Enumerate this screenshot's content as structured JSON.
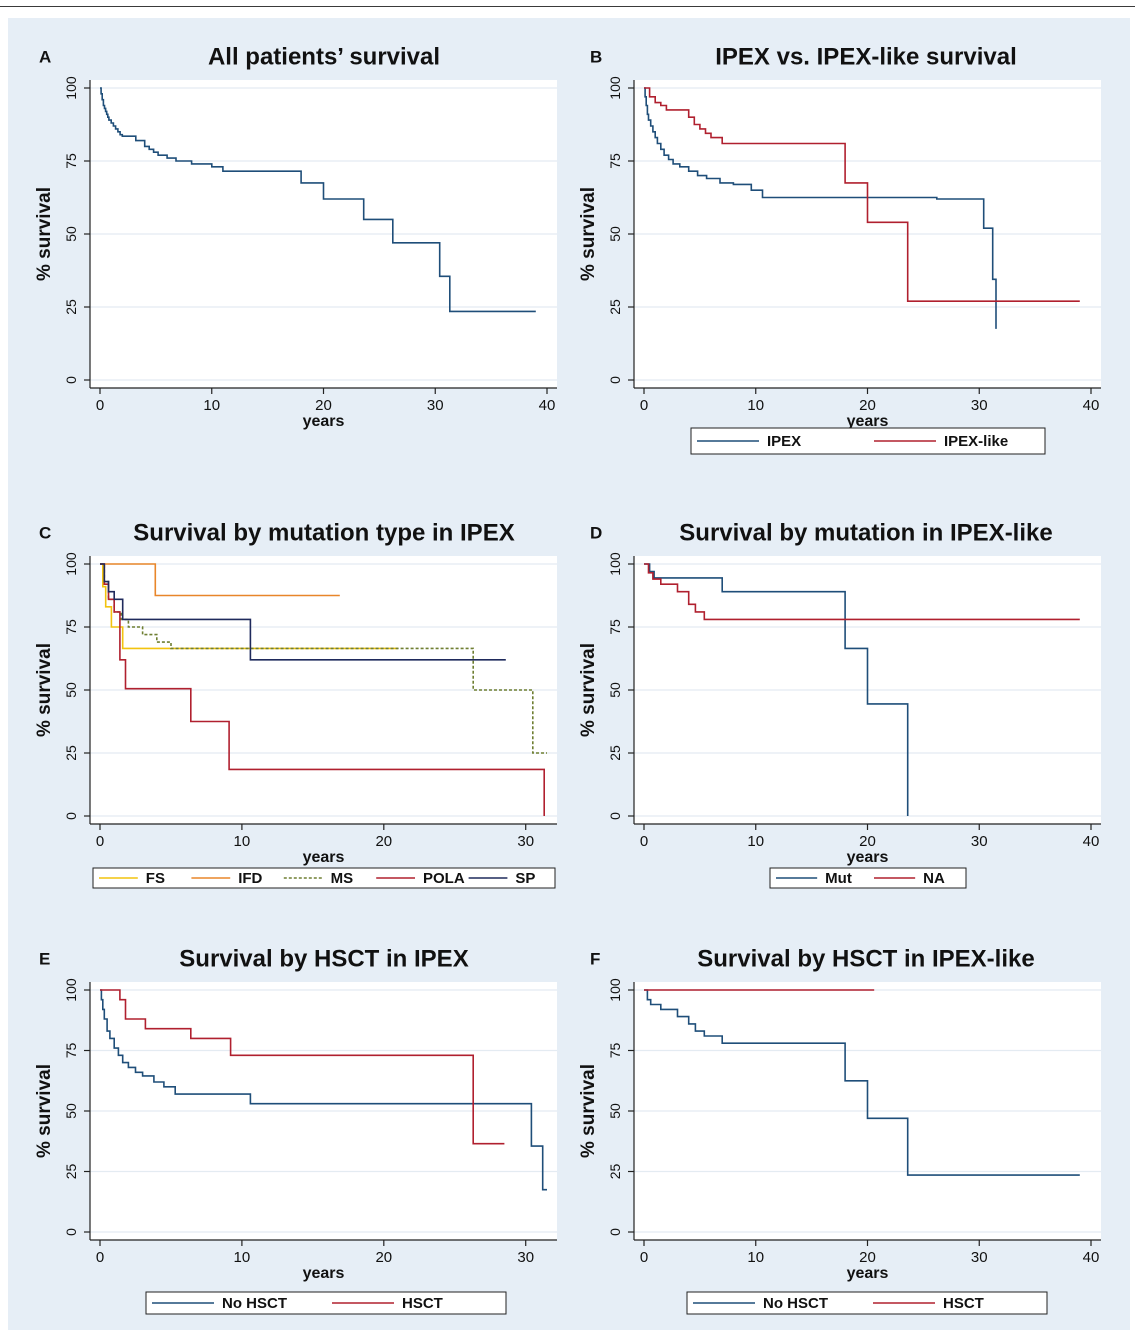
{
  "colors": {
    "background": "#e6eef6",
    "plot_area": "#ffffff",
    "navy": "#1f4e79",
    "dark_red": "#b0202f",
    "yellow": "#f2c30f",
    "orange": "#e8862a",
    "olive": "#6f7f32",
    "dark_navy": "#1f2a5c",
    "axis": "#222222"
  },
  "chart_data": [
    {
      "panel": "A",
      "title": "All patients’ survival",
      "type": "line",
      "xlabel": "years",
      "ylabel": "% survival",
      "xlim": [
        0,
        40
      ],
      "ylim": [
        0,
        100
      ],
      "xticks": [
        0,
        10,
        20,
        30,
        40
      ],
      "yticks": [
        0,
        25,
        50,
        75,
        100
      ],
      "grid": true,
      "legend": null,
      "series": [
        {
          "color": "#1f4e79",
          "x": [
            0,
            0.1,
            0.2,
            0.3,
            0.4,
            0.5,
            0.6,
            0.7,
            0.8,
            1.0,
            1.2,
            1.4,
            1.6,
            1.8,
            2.0,
            3.2,
            4.0,
            4.4,
            4.8,
            5.2,
            6.0,
            6.8,
            8.2,
            10.0,
            11.0,
            18.0,
            20.0,
            23.6,
            26.2,
            30.4,
            31.3,
            39.0
          ],
          "y": [
            100,
            98,
            96,
            94,
            93,
            92,
            91,
            90,
            89,
            88,
            87,
            86,
            85,
            84,
            83.5,
            82,
            80,
            79,
            78,
            77,
            76,
            75,
            74,
            73,
            71.5,
            67.5,
            62,
            55,
            47,
            35.5,
            23.5,
            23.5
          ]
        }
      ]
    },
    {
      "panel": "B",
      "title": "IPEX vs. IPEX-like survival",
      "type": "line",
      "xlabel": "years",
      "ylabel": "% survival",
      "xlim": [
        0,
        40
      ],
      "ylim": [
        0,
        100
      ],
      "xticks": [
        0,
        10,
        20,
        30,
        40
      ],
      "yticks": [
        0,
        25,
        50,
        75,
        100
      ],
      "grid": true,
      "legend": "bottom",
      "series": [
        {
          "name": "IPEX",
          "color": "#1f4e79",
          "x": [
            0,
            0.1,
            0.2,
            0.3,
            0.4,
            0.6,
            0.8,
            1.0,
            1.2,
            1.5,
            1.8,
            2.2,
            2.6,
            3.2,
            4.0,
            4.8,
            5.6,
            6.8,
            8.0,
            9.6,
            10.6,
            26.2,
            30.4,
            31.2,
            31.5
          ],
          "y": [
            100,
            97,
            94,
            91,
            89,
            87,
            85,
            83,
            81,
            79,
            77,
            75.5,
            74,
            73,
            71.5,
            70,
            69,
            67.5,
            67,
            65,
            62.5,
            62,
            52,
            34.5,
            17.5
          ]
        },
        {
          "name": "IPEX-like",
          "color": "#b0202f",
          "x": [
            0,
            0.5,
            1.0,
            1.5,
            2.0,
            4.0,
            4.5,
            5.0,
            5.5,
            6.0,
            7.0,
            18.0,
            20.0,
            23.6,
            39.0
          ],
          "y": [
            100,
            97,
            95,
            94,
            92.5,
            90,
            87.5,
            86,
            84.5,
            83,
            81,
            67.5,
            54,
            27,
            27
          ]
        }
      ]
    },
    {
      "panel": "C",
      "title": "Survival by mutation type in IPEX",
      "type": "line",
      "xlabel": "years",
      "ylabel": "% survival",
      "xlim": [
        0,
        31.5
      ],
      "ylim": [
        0,
        100
      ],
      "xticks": [
        0,
        10,
        20,
        30
      ],
      "yticks": [
        0,
        25,
        50,
        75,
        100
      ],
      "grid": true,
      "legend": "bottom",
      "series": [
        {
          "name": "FS",
          "color": "#f2c30f",
          "x": [
            0,
            0.2,
            0.4,
            0.8,
            1.6,
            21.0
          ],
          "y": [
            100,
            91,
            83,
            75,
            66.5,
            66.5
          ]
        },
        {
          "name": "IFD",
          "color": "#e8862a",
          "x": [
            0,
            0.4,
            3.9,
            16.9
          ],
          "y": [
            100,
            100,
            87.5,
            87.5
          ]
        },
        {
          "name": "MS",
          "color": "#6f7f32",
          "dash": "3,2",
          "x": [
            0,
            0.3,
            0.6,
            1.0,
            1.5,
            2.0,
            3.0,
            4.0,
            5.0,
            26.3,
            30.5,
            31.5
          ],
          "y": [
            100,
            93,
            86,
            81,
            78,
            75,
            72,
            69,
            66.5,
            50,
            25,
            25
          ]
        },
        {
          "name": "POLA",
          "color": "#b0202f",
          "x": [
            0,
            0.3,
            0.6,
            1.0,
            1.4,
            1.8,
            6.4,
            9.1,
            31.3,
            31.3
          ],
          "y": [
            100,
            92,
            86,
            81,
            62,
            50.5,
            37.5,
            18.5,
            18.5,
            0
          ]
        },
        {
          "name": "SP",
          "color": "#1f2a5c",
          "x": [
            0,
            0.3,
            0.6,
            1.0,
            1.6,
            10.6,
            28.6
          ],
          "y": [
            100,
            93,
            89,
            86,
            78,
            62,
            62
          ]
        }
      ]
    },
    {
      "panel": "D",
      "title": "Survival by mutation in IPEX-like",
      "type": "line",
      "xlabel": "years",
      "ylabel": "% survival",
      "xlim": [
        0,
        40
      ],
      "ylim": [
        0,
        100
      ],
      "xticks": [
        0,
        10,
        20,
        30,
        40
      ],
      "yticks": [
        0,
        25,
        50,
        75,
        100
      ],
      "grid": true,
      "legend": "bottom",
      "series": [
        {
          "name": "Mut",
          "color": "#1f4e79",
          "x": [
            0,
            0.5,
            0.9,
            7.0,
            18.0,
            20.0,
            23.6,
            23.6
          ],
          "y": [
            100,
            97,
            94.5,
            89,
            66.5,
            44.5,
            44.5,
            0
          ]
        },
        {
          "name": "NA",
          "color": "#b0202f",
          "x": [
            0,
            0.4,
            0.8,
            1.5,
            3.0,
            4.0,
            4.6,
            5.4,
            39.0
          ],
          "y": [
            100,
            96.5,
            94,
            92,
            89,
            84,
            81,
            78,
            78
          ]
        }
      ]
    },
    {
      "panel": "E",
      "title": "Survival by HSCT in IPEX",
      "type": "line",
      "xlabel": "years",
      "ylabel": "% survival",
      "xlim": [
        0,
        31.5
      ],
      "ylim": [
        0,
        100
      ],
      "xticks": [
        0,
        10,
        20,
        30
      ],
      "yticks": [
        0,
        25,
        50,
        75,
        100
      ],
      "grid": true,
      "legend": "bottom",
      "series": [
        {
          "name": "No HSCT",
          "color": "#1f4e79",
          "x": [
            0,
            0.1,
            0.2,
            0.3,
            0.5,
            0.7,
            1.0,
            1.3,
            1.6,
            2.0,
            2.5,
            3.0,
            3.8,
            4.5,
            5.3,
            10.6,
            30.4,
            31.2,
            31.5
          ],
          "y": [
            100,
            96,
            92,
            88,
            83,
            80,
            76,
            73,
            70,
            68,
            66,
            64.5,
            62,
            60,
            57,
            53,
            35.5,
            17.5,
            17.5
          ]
        },
        {
          "name": "HSCT",
          "color": "#b0202f",
          "x": [
            0,
            0.3,
            1.4,
            1.8,
            3.2,
            6.4,
            9.2,
            26.3,
            28.5
          ],
          "y": [
            100,
            100,
            96,
            88,
            84,
            80,
            73,
            36.5,
            36.5
          ]
        }
      ]
    },
    {
      "panel": "F",
      "title": "Survival by HSCT in IPEX-like",
      "type": "line",
      "xlabel": "years",
      "ylabel": "% survival",
      "xlim": [
        0,
        40
      ],
      "ylim": [
        0,
        100
      ],
      "xticks": [
        0,
        10,
        20,
        30,
        40
      ],
      "yticks": [
        0,
        25,
        50,
        75,
        100
      ],
      "grid": true,
      "legend": "bottom",
      "series": [
        {
          "name": "No HSCT",
          "color": "#1f4e79",
          "x": [
            0,
            0.3,
            0.6,
            1.5,
            3.0,
            4.0,
            4.6,
            5.4,
            7.0,
            18.0,
            20.0,
            23.6,
            39.0
          ],
          "y": [
            100,
            96,
            94,
            92,
            89,
            86,
            83,
            81,
            78,
            62.5,
            47,
            23.5,
            23.5
          ]
        },
        {
          "name": "HSCT",
          "color": "#b0202f",
          "x": [
            0,
            20.6
          ],
          "y": [
            100,
            100
          ]
        }
      ]
    }
  ]
}
